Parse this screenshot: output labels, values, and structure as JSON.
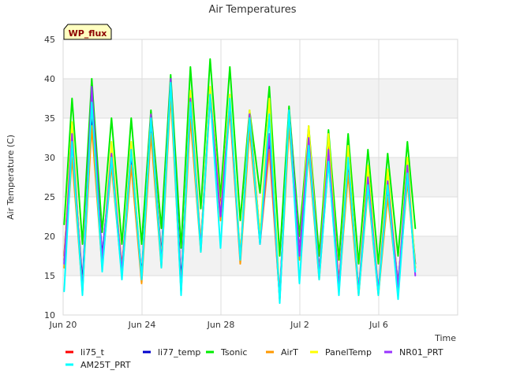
{
  "chart_data": {
    "type": "line",
    "title": "Air Temperatures",
    "xlabel": "Time",
    "ylabel": "Air Temperature (C)",
    "badge": "WP_flux",
    "ylim": [
      10,
      45
    ],
    "yticks": [
      10,
      15,
      20,
      25,
      30,
      35,
      40,
      45
    ],
    "xlim_days": [
      0,
      20
    ],
    "xticks": [
      {
        "day": 0,
        "label": "Jun 20"
      },
      {
        "day": 4,
        "label": "Jun 24"
      },
      {
        "day": 8,
        "label": "Jun 28"
      },
      {
        "day": 12,
        "label": "Jul 2"
      },
      {
        "day": 16,
        "label": "Jul 6"
      }
    ],
    "grid": true,
    "bands": [
      [
        15,
        20
      ],
      [
        25,
        30
      ],
      [
        35,
        40
      ]
    ],
    "legend_position": "bottom",
    "x_days": [
      0.05,
      0.45,
      0.98,
      1.45,
      1.98,
      2.45,
      2.98,
      3.45,
      3.98,
      4.45,
      4.98,
      5.45,
      5.98,
      6.45,
      6.98,
      7.45,
      7.98,
      8.45,
      8.98,
      9.45,
      9.98,
      10.45,
      10.98,
      11.45,
      11.98,
      12.45,
      12.98,
      13.45,
      13.98,
      14.45,
      14.98,
      15.45,
      15.98,
      16.45,
      16.98,
      17.45,
      17.85
    ],
    "series": [
      {
        "name": "li75_t",
        "color": "#ff0000",
        "values": [
          17.5,
          32.5,
          13.5,
          35.5,
          17,
          30.5,
          16,
          30,
          14.5,
          34.5,
          17,
          39,
          13.5,
          36.5,
          18.5,
          38,
          23.5,
          37,
          17.5,
          35,
          19.5,
          32,
          12,
          35.5,
          17.5,
          32,
          15,
          31.5,
          14,
          29.5,
          13,
          27.5,
          13,
          26,
          13.5,
          28,
          16
        ]
      },
      {
        "name": "li77_temp",
        "color": "#0000cc",
        "values": [
          17,
          33,
          14,
          36,
          17.5,
          30,
          15.5,
          30.5,
          15,
          35,
          17.5,
          39.5,
          14,
          37,
          19,
          38.5,
          23,
          36.5,
          17,
          35.5,
          20,
          32.5,
          12.5,
          35,
          18,
          32,
          15.5,
          30,
          13.5,
          30,
          13,
          27,
          13,
          26.5,
          14,
          28,
          16.5
        ]
      },
      {
        "name": "Tsonic",
        "color": "#00ee00",
        "values": [
          21.5,
          37.5,
          19,
          40,
          20.5,
          35,
          19,
          35,
          19,
          36,
          21,
          40.5,
          18.5,
          41.5,
          23.5,
          42.5,
          25,
          41.5,
          22,
          36,
          25.5,
          39,
          17.5,
          36.5,
          20,
          34,
          17.5,
          33.5,
          17,
          33,
          16.5,
          31,
          16.5,
          30.5,
          17.5,
          32,
          21
        ]
      },
      {
        "name": "AirT",
        "color": "#ff9900",
        "values": [
          16,
          30,
          13,
          34,
          16,
          29,
          15,
          29,
          14,
          33,
          16,
          38,
          13,
          35,
          18,
          37.5,
          22,
          36,
          16.5,
          33.5,
          19,
          31,
          12,
          34,
          17,
          30.5,
          14.5,
          29.5,
          13,
          28,
          12.5,
          26,
          12.5,
          25,
          13,
          27,
          16
        ]
      },
      {
        "name": "PanelTemp",
        "color": "#ffff00",
        "values": [
          17,
          34.5,
          13,
          37,
          16.5,
          32,
          15.5,
          32,
          14.5,
          35.5,
          17,
          39.5,
          13,
          38.5,
          19,
          39,
          23,
          38,
          17.5,
          36,
          20,
          37.5,
          12,
          36,
          17.5,
          34,
          15,
          33,
          13.5,
          31.5,
          13,
          29,
          13,
          28.5,
          13.5,
          30,
          16
        ]
      },
      {
        "name": "NR01_PRT",
        "color": "#9933ff",
        "values": [
          16.5,
          33,
          13,
          39,
          17,
          30.5,
          15.5,
          31,
          14.5,
          35.5,
          16.5,
          40,
          13,
          37.5,
          18.5,
          38,
          22.5,
          37,
          17,
          35.5,
          19,
          33,
          12,
          36,
          17.5,
          32.5,
          15,
          31,
          13.5,
          30,
          13,
          27.5,
          13,
          27,
          13.5,
          29,
          15
        ]
      },
      {
        "name": "AM25T_PRT",
        "color": "#00ffff",
        "values": [
          13,
          32,
          12.5,
          37,
          15.5,
          30,
          14.5,
          31,
          14.5,
          35,
          16,
          39.5,
          12.5,
          37,
          18,
          38,
          18.5,
          37.5,
          17,
          35,
          19,
          35.5,
          11.5,
          36,
          14,
          31.5,
          14.5,
          29.5,
          12.5,
          30,
          12.5,
          26.5,
          12.5,
          26.5,
          12,
          28,
          15.5
        ]
      }
    ]
  }
}
